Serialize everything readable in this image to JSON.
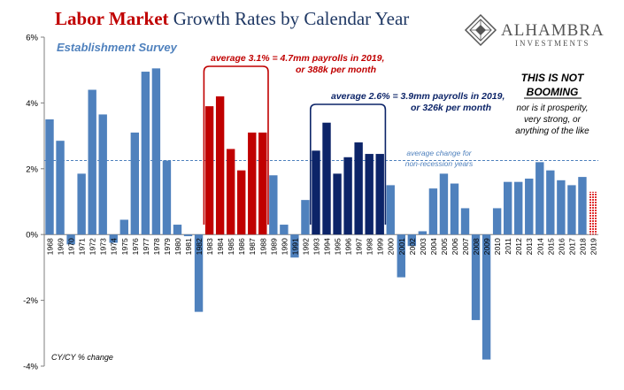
{
  "header": {
    "title_part1": "Labor Market",
    "title_part2": " Growth Rates by Calendar Year",
    "logo_name": "ALHAMBRA",
    "logo_sub": "INVESTMENTS"
  },
  "colors": {
    "title_red": "#c00000",
    "title_navy": "#1f3864",
    "bar_blue": "#4f81bd",
    "bar_red": "#c00000",
    "bar_navy": "#0c2468",
    "bar_pattern": "#e03030",
    "avg_line": "#4f81bd",
    "logo": "#555555"
  },
  "annotations": {
    "survey": "Establishment Survey",
    "red_line1": "average 3.1% = 4.7mm payrolls in 2019,",
    "red_line2": "or 388k per month",
    "navy_line1": "average 2.6% = 3.9mm payrolls in 2019,",
    "navy_line2": "or 326k per month",
    "not_booming1": "THIS IS NOT",
    "not_booming2": "BOOMING",
    "nor1": "nor is it prosperity,",
    "nor2": "very strong, or",
    "nor3": "anything of the like",
    "avg_label1": "average change for",
    "avg_label2": "non-recession years",
    "footnote": "CY/CY % change"
  },
  "chart_data": {
    "type": "bar",
    "title": "Labor Market Growth Rates by Calendar Year",
    "ylabel": "CY/CY % change",
    "ylim": [
      -4,
      6
    ],
    "yticks": [
      -4,
      -2,
      0,
      2,
      4,
      6
    ],
    "ytick_labels": [
      "-4%",
      "-2%",
      "0%",
      "2%",
      "4%",
      "6%"
    ],
    "average_non_recession": 2.25,
    "categories": [
      "1968",
      "1969",
      "1970",
      "1971",
      "1972",
      "1973",
      "1974",
      "1975",
      "1976",
      "1977",
      "1978",
      "1979",
      "1980",
      "1981",
      "1982",
      "1983",
      "1984",
      "1985",
      "1986",
      "1987",
      "1988",
      "1989",
      "1990",
      "1991",
      "1992",
      "1993",
      "1994",
      "1995",
      "1996",
      "1997",
      "1998",
      "1999",
      "2000",
      "2001",
      "2002",
      "2003",
      "2004",
      "2005",
      "2006",
      "2007",
      "2008",
      "2009",
      "2010",
      "2011",
      "2012",
      "2013",
      "2014",
      "2015",
      "2016",
      "2017",
      "2018",
      "2019"
    ],
    "values": [
      3.5,
      2.85,
      -0.3,
      1.85,
      4.4,
      3.65,
      -0.25,
      0.45,
      3.1,
      4.95,
      5.05,
      2.25,
      0.3,
      -0.05,
      -2.35,
      3.9,
      4.2,
      2.6,
      1.95,
      3.1,
      3.1,
      1.8,
      0.3,
      -0.7,
      1.05,
      2.55,
      3.4,
      1.85,
      2.35,
      2.8,
      2.45,
      2.45,
      1.5,
      -1.3,
      -0.35,
      0.1,
      1.4,
      1.85,
      1.55,
      0.8,
      -2.6,
      -3.8,
      0.8,
      1.6,
      1.6,
      1.7,
      2.2,
      1.95,
      1.65,
      1.5,
      1.75,
      1.3
    ],
    "highlight_red": [
      "1983",
      "1984",
      "1985",
      "1986",
      "1987",
      "1988"
    ],
    "highlight_navy": [
      "1993",
      "1994",
      "1995",
      "1996",
      "1997",
      "1998",
      "1999"
    ],
    "highlight_pattern": [
      "2019"
    ]
  }
}
